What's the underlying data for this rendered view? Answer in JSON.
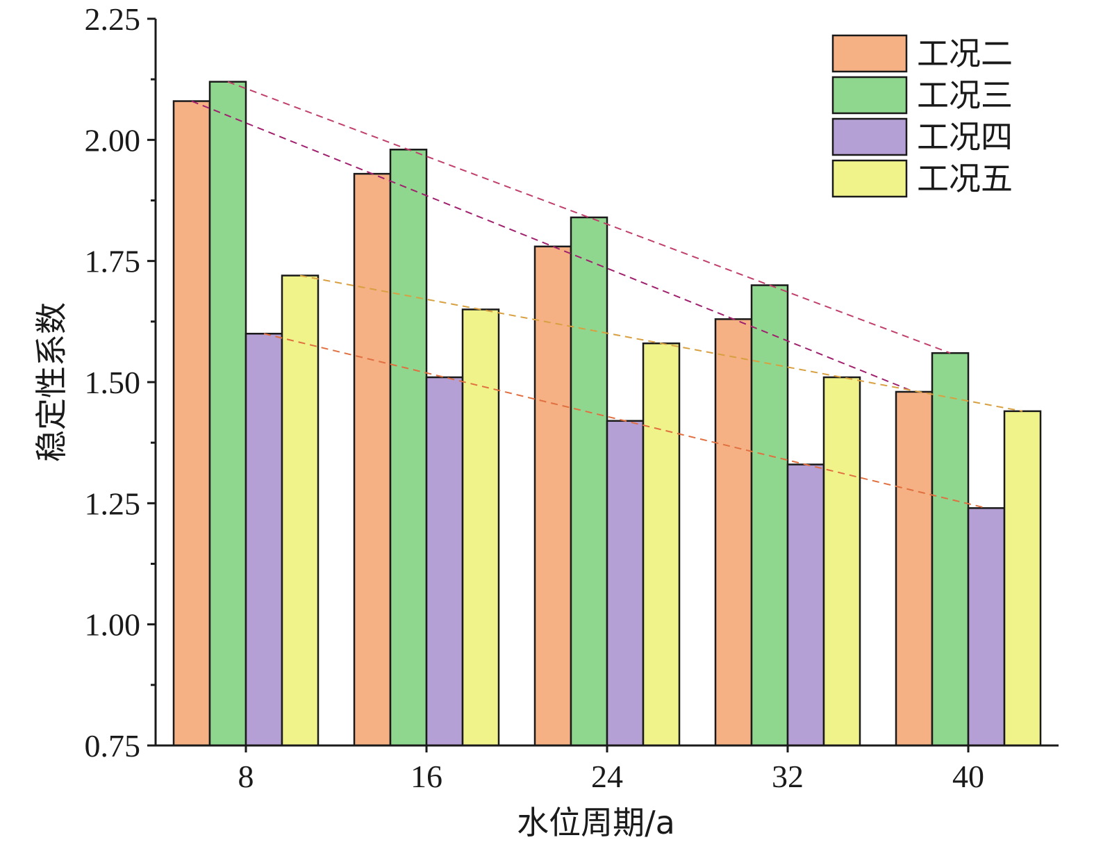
{
  "chart_data": {
    "type": "bar",
    "xlabel": "水位周期/a",
    "ylabel": "稳定性系数",
    "ylim": [
      0.75,
      2.25
    ],
    "yticks": [
      "0.75",
      "1.00",
      "1.25",
      "1.50",
      "1.75",
      "2.00",
      "2.25"
    ],
    "categories": [
      "8",
      "16",
      "24",
      "32",
      "40"
    ],
    "series": [
      {
        "name": "工况二",
        "color": "#f5b084",
        "trend_color": "#a0206e",
        "values": [
          2.08,
          1.93,
          1.78,
          1.63,
          1.48
        ]
      },
      {
        "name": "工况三",
        "color": "#8fd68f",
        "trend_color": "#c0406a",
        "values": [
          2.12,
          1.98,
          1.84,
          1.7,
          1.56
        ]
      },
      {
        "name": "工况四",
        "color": "#b4a0d4",
        "trend_color": "#e07040",
        "values": [
          1.6,
          1.51,
          1.42,
          1.33,
          1.24
        ]
      },
      {
        "name": "工况五",
        "color": "#f0f28a",
        "trend_color": "#d8a040",
        "values": [
          1.72,
          1.65,
          1.58,
          1.51,
          1.44
        ]
      }
    ],
    "legend_position": "top-right",
    "trend_lines": true
  }
}
